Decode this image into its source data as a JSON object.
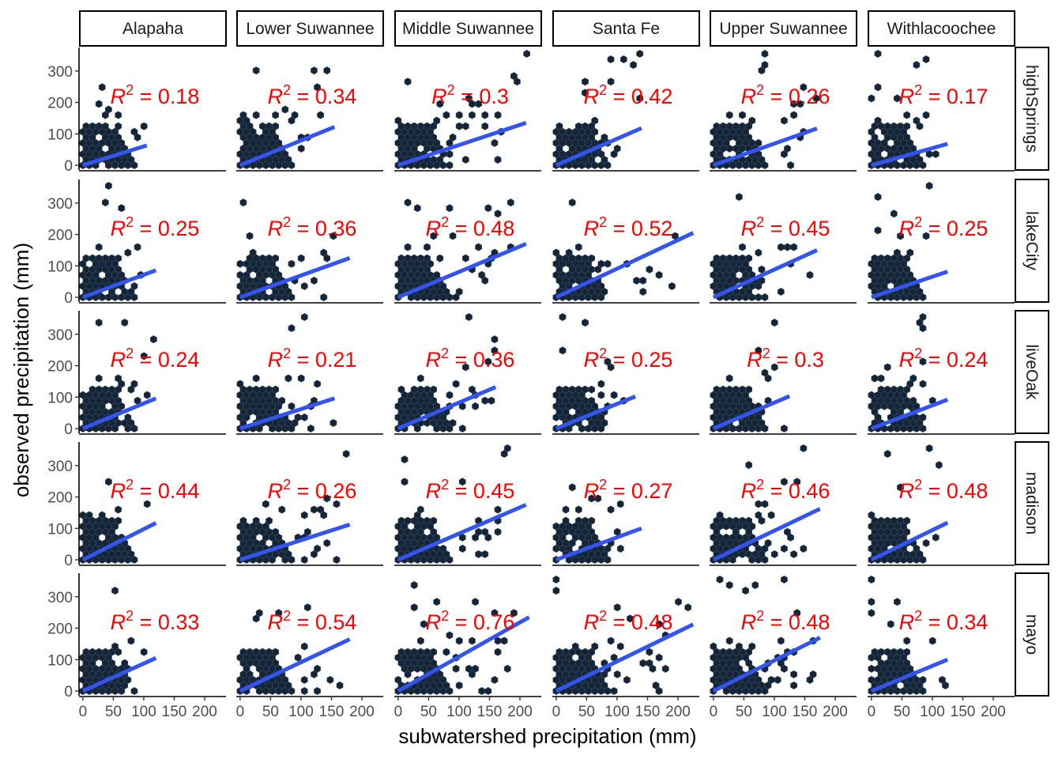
{
  "chart_data": {
    "type": "faceted-hexbin-scatter",
    "xlabel": "subwatershed precipitation (mm)",
    "ylabel": "observed precipitation (mm)",
    "xlim": [
      -5,
      235
    ],
    "ylim": [
      -15,
      375
    ],
    "xticks": [
      0,
      50,
      100,
      150,
      200
    ],
    "xtick_labels": [
      "0",
      "50",
      "100",
      "150",
      "200"
    ],
    "yticks": [
      0,
      100,
      200,
      300
    ],
    "ytick_labels": [
      "0",
      "100",
      "200",
      "300"
    ],
    "columns": [
      "Alapaha",
      "Lower Suwannee",
      "Middle Suwannee",
      "Santa Fe",
      "Upper Suwannee",
      "Withlacoochee"
    ],
    "rows": [
      "highSprings",
      "lakeCity",
      "liveOak",
      "madison",
      "mayo"
    ],
    "r2_prefix": "R",
    "r2_sup": "2",
    "r2": [
      [
        "0.18",
        "0.34",
        "0.3",
        "0.42",
        "0.26",
        "0.17"
      ],
      [
        "0.25",
        "0.36",
        "0.48",
        "0.52",
        "0.45",
        "0.25"
      ],
      [
        "0.24",
        "0.21",
        "0.36",
        "0.25",
        "0.3",
        "0.24"
      ],
      [
        "0.44",
        "0.26",
        "0.45",
        "0.27",
        "0.46",
        "0.48"
      ],
      [
        "0.33",
        "0.54",
        "0.76",
        "0.48",
        "0.48",
        "0.34"
      ]
    ],
    "fit_line_end": [
      [
        [
          105,
          63
        ],
        [
          155,
          122
        ],
        [
          210,
          135
        ],
        [
          140,
          118
        ],
        [
          170,
          117
        ],
        [
          125,
          68
        ]
      ],
      [
        [
          120,
          86
        ],
        [
          180,
          125
        ],
        [
          210,
          170
        ],
        [
          225,
          205
        ],
        [
          170,
          150
        ],
        [
          125,
          82
        ]
      ],
      [
        [
          120,
          96
        ],
        [
          155,
          96
        ],
        [
          160,
          132
        ],
        [
          130,
          102
        ],
        [
          125,
          103
        ],
        [
          125,
          92
        ]
      ],
      [
        [
          120,
          117
        ],
        [
          180,
          112
        ],
        [
          210,
          175
        ],
        [
          140,
          100
        ],
        [
          175,
          162
        ],
        [
          125,
          118
        ]
      ],
      [
        [
          120,
          105
        ],
        [
          180,
          165
        ],
        [
          215,
          235
        ],
        [
          225,
          212
        ],
        [
          175,
          170
        ],
        [
          125,
          100
        ]
      ]
    ],
    "x_extent": [
      [
        115,
        155,
        215,
        145,
        175,
        130
      ],
      [
        120,
        180,
        215,
        225,
        175,
        125
      ],
      [
        120,
        160,
        160,
        135,
        125,
        125
      ],
      [
        120,
        175,
        210,
        140,
        175,
        125
      ],
      [
        125,
        180,
        215,
        225,
        175,
        125
      ]
    ],
    "colors": {
      "hex_fill": "#142538",
      "hex_stroke": "#3b4c63",
      "fit_line": "#3355ee",
      "r2_text": "#ff0000",
      "strip_border": "#000000",
      "axis": "#000000"
    }
  }
}
